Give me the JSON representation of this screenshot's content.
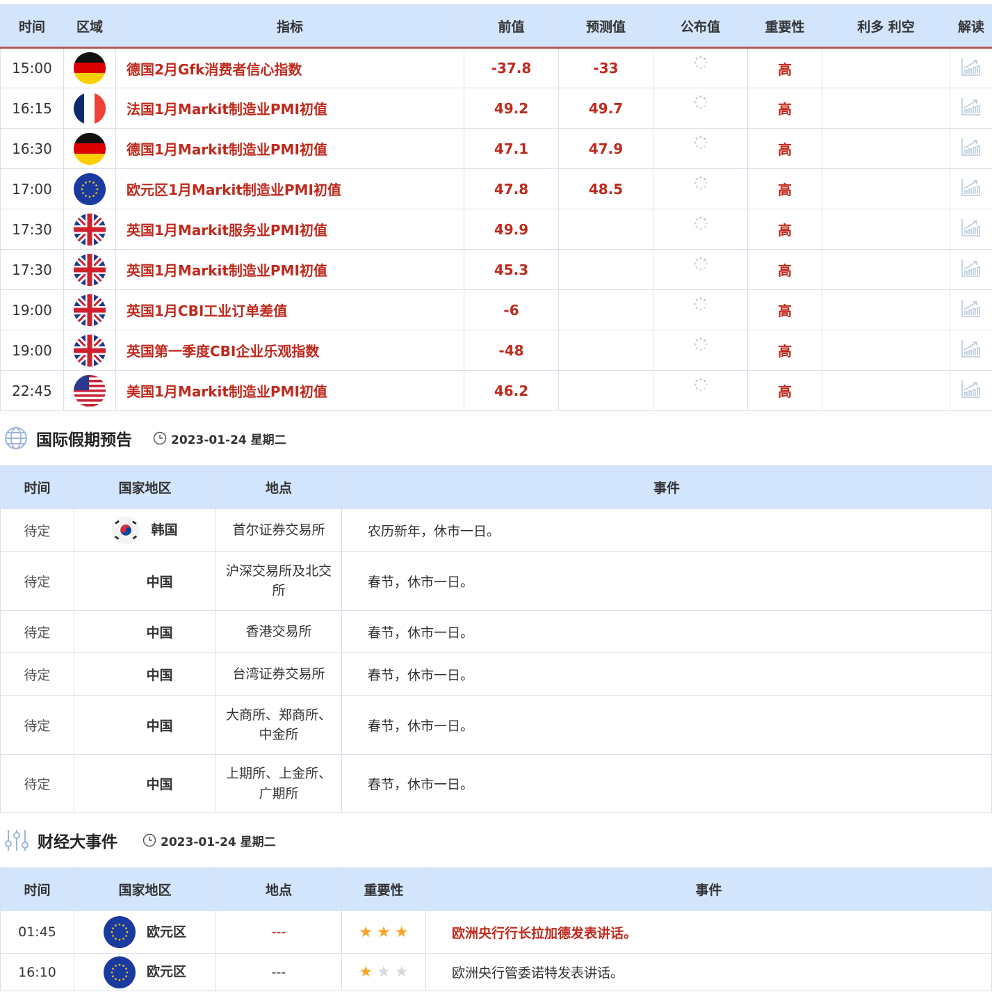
{
  "indicators": {
    "headers": [
      "时间",
      "区域",
      "指标",
      "前值",
      "预测值",
      "公布值",
      "重要性",
      "利多 利空",
      "解读"
    ],
    "rows": [
      {
        "time": "15:00",
        "flag": "germany",
        "name": "德国2月Gfk消费者信心指数",
        "prev": "-37.8",
        "forecast": "-33",
        "importance": "高"
      },
      {
        "time": "16:15",
        "flag": "france",
        "name": "法国1月Markit制造业PMI初值",
        "prev": "49.2",
        "forecast": "49.7",
        "importance": "高"
      },
      {
        "time": "16:30",
        "flag": "germany",
        "name": "德国1月Markit制造业PMI初值",
        "prev": "47.1",
        "forecast": "47.9",
        "importance": "高"
      },
      {
        "time": "17:00",
        "flag": "eu",
        "name": "欧元区1月Markit制造业PMI初值",
        "prev": "47.8",
        "forecast": "48.5",
        "importance": "高"
      },
      {
        "time": "17:30",
        "flag": "uk",
        "name": "英国1月Markit服务业PMI初值",
        "prev": "49.9",
        "forecast": "",
        "importance": "高"
      },
      {
        "time": "17:30",
        "flag": "uk",
        "name": "英国1月Markit制造业PMI初值",
        "prev": "45.3",
        "forecast": "",
        "importance": "高"
      },
      {
        "time": "19:00",
        "flag": "uk",
        "name": "英国1月CBI工业订单差值",
        "prev": "-6",
        "forecast": "",
        "importance": "高"
      },
      {
        "time": "19:00",
        "flag": "uk",
        "name": "英国第一季度CBI企业乐观指数",
        "prev": "-48",
        "forecast": "",
        "importance": "高"
      },
      {
        "time": "22:45",
        "flag": "us",
        "name": "美国1月Markit制造业PMI初值",
        "prev": "46.2",
        "forecast": "",
        "importance": "高"
      }
    ]
  },
  "holidays": {
    "title": "国际假期预告",
    "date": "2023-01-24 星期二",
    "headers": [
      "时间",
      "国家地区",
      "地点",
      "事件"
    ],
    "rows": [
      {
        "time": "待定",
        "flag": "korea",
        "country": "韩国",
        "place": "首尔证券交易所",
        "event": "农历新年，休市一日。"
      },
      {
        "time": "待定",
        "flag": "",
        "country": "中国",
        "place": "沪深交易所及北交所",
        "event": "春节，休市一日。"
      },
      {
        "time": "待定",
        "flag": "",
        "country": "中国",
        "place": "香港交易所",
        "event": "春节，休市一日。"
      },
      {
        "time": "待定",
        "flag": "",
        "country": "中国",
        "place": "台湾证券交易所",
        "event": "春节，休市一日。"
      },
      {
        "time": "待定",
        "flag": "",
        "country": "中国",
        "place": "大商所、郑商所、中金所",
        "event": "春节，休市一日。"
      },
      {
        "time": "待定",
        "flag": "",
        "country": "中国",
        "place": "上期所、上金所、广期所",
        "event": "春节，休市一日。"
      }
    ]
  },
  "events": {
    "title": "财经大事件",
    "date": "2023-01-24 星期二",
    "headers": [
      "时间",
      "国家地区",
      "地点",
      "重要性",
      "事件"
    ],
    "rows": [
      {
        "time": "01:45",
        "flag": "eu",
        "country": "欧元区",
        "place": "---",
        "stars": 3,
        "event": "欧洲央行行长拉加德发表讲话。",
        "highlight": true
      },
      {
        "time": "16:10",
        "flag": "eu",
        "country": "欧元区",
        "place": "---",
        "stars": 1,
        "event": "欧洲央行管委诺特发表讲话。",
        "highlight": false
      }
    ]
  },
  "colors": {
    "accent": "#c0291c",
    "header_bg": "#d3e5fd",
    "star_on": "#f5a623",
    "star_off": "#d9d9d9"
  }
}
